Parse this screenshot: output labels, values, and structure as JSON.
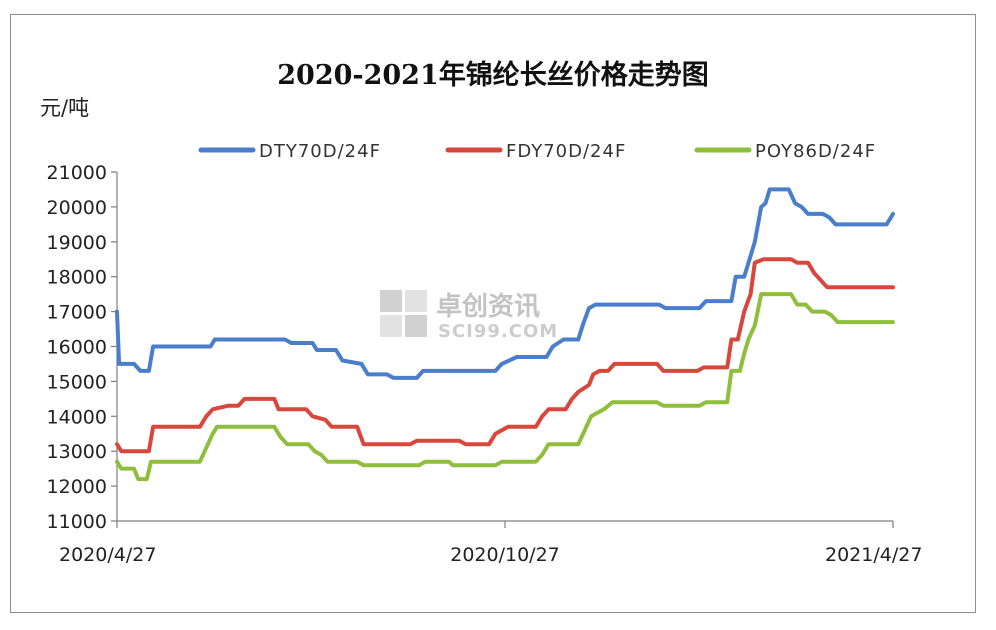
{
  "chart_data": {
    "type": "line",
    "title": "2020-2021年锦纶长丝价格走势图",
    "ylabel": "元/吨",
    "xlabel": "",
    "ylim": [
      11000,
      21000
    ],
    "yticks": [
      11000,
      12000,
      13000,
      14000,
      15000,
      16000,
      17000,
      18000,
      19000,
      20000,
      21000
    ],
    "x_tick_labels": [
      "2020/4/27",
      "2020/10/27",
      "2021/4/27"
    ],
    "grid": false,
    "legend_position": "top",
    "watermark": {
      "name": "卓创资讯",
      "site": "SCI99.COM"
    },
    "x_range": [
      "2020-04-27",
      "2021-04-27"
    ],
    "series": [
      {
        "name": "DTY70D/24F",
        "color": "#4a7ecb",
        "points": [
          [
            "2020-04-27",
            17000
          ],
          [
            "2020-04-28",
            15500
          ],
          [
            "2020-05-05",
            15500
          ],
          [
            "2020-05-08",
            15300
          ],
          [
            "2020-05-12",
            15300
          ],
          [
            "2020-05-14",
            16000
          ],
          [
            "2020-06-10",
            16000
          ],
          [
            "2020-06-12",
            16200
          ],
          [
            "2020-07-15",
            16200
          ],
          [
            "2020-07-18",
            16100
          ],
          [
            "2020-07-28",
            16100
          ],
          [
            "2020-07-30",
            15900
          ],
          [
            "2020-08-08",
            15900
          ],
          [
            "2020-08-11",
            15600
          ],
          [
            "2020-08-20",
            15500
          ],
          [
            "2020-08-23",
            15200
          ],
          [
            "2020-09-01",
            15200
          ],
          [
            "2020-09-04",
            15100
          ],
          [
            "2020-09-15",
            15100
          ],
          [
            "2020-09-18",
            15300
          ],
          [
            "2020-10-22",
            15300
          ],
          [
            "2020-10-25",
            15500
          ],
          [
            "2020-11-01",
            15700
          ],
          [
            "2020-11-15",
            15700
          ],
          [
            "2020-11-18",
            16000
          ],
          [
            "2020-11-23",
            16200
          ],
          [
            "2020-11-30",
            16200
          ],
          [
            "2020-12-02",
            16600
          ],
          [
            "2020-12-05",
            17100
          ],
          [
            "2020-12-08",
            17200
          ],
          [
            "2021-01-07",
            17200
          ],
          [
            "2021-01-10",
            17100
          ],
          [
            "2021-01-26",
            17100
          ],
          [
            "2021-01-29",
            17300
          ],
          [
            "2021-02-10",
            17300
          ],
          [
            "2021-02-12",
            18000
          ],
          [
            "2021-02-16",
            18000
          ],
          [
            "2021-02-19",
            18600
          ],
          [
            "2021-02-21",
            19000
          ],
          [
            "2021-02-24",
            20000
          ],
          [
            "2021-02-26",
            20100
          ],
          [
            "2021-02-28",
            20500
          ],
          [
            "2021-03-09",
            20500
          ],
          [
            "2021-03-12",
            20100
          ],
          [
            "2021-03-15",
            20000
          ],
          [
            "2021-03-18",
            19800
          ],
          [
            "2021-03-25",
            19800
          ],
          [
            "2021-03-28",
            19700
          ],
          [
            "2021-03-31",
            19500
          ],
          [
            "2021-04-24",
            19500
          ],
          [
            "2021-04-27",
            19800
          ]
        ]
      },
      {
        "name": "FDY70D/24F",
        "color": "#d9463c",
        "points": [
          [
            "2020-04-27",
            13200
          ],
          [
            "2020-04-29",
            13000
          ],
          [
            "2020-05-12",
            13000
          ],
          [
            "2020-05-14",
            13700
          ],
          [
            "2020-06-05",
            13700
          ],
          [
            "2020-06-08",
            14000
          ],
          [
            "2020-06-11",
            14200
          ],
          [
            "2020-06-18",
            14300
          ],
          [
            "2020-06-23",
            14300
          ],
          [
            "2020-06-26",
            14500
          ],
          [
            "2020-07-10",
            14500
          ],
          [
            "2020-07-12",
            14200
          ],
          [
            "2020-07-25",
            14200
          ],
          [
            "2020-07-28",
            14000
          ],
          [
            "2020-08-03",
            13900
          ],
          [
            "2020-08-06",
            13700
          ],
          [
            "2020-08-18",
            13700
          ],
          [
            "2020-08-21",
            13200
          ],
          [
            "2020-09-12",
            13200
          ],
          [
            "2020-09-15",
            13300
          ],
          [
            "2020-10-05",
            13300
          ],
          [
            "2020-10-08",
            13200
          ],
          [
            "2020-10-19",
            13200
          ],
          [
            "2020-10-22",
            13500
          ],
          [
            "2020-10-28",
            13700
          ],
          [
            "2020-11-10",
            13700
          ],
          [
            "2020-11-13",
            14000
          ],
          [
            "2020-11-16",
            14200
          ],
          [
            "2020-11-24",
            14200
          ],
          [
            "2020-11-27",
            14500
          ],
          [
            "2020-11-30",
            14700
          ],
          [
            "2020-12-05",
            14900
          ],
          [
            "2020-12-07",
            15200
          ],
          [
            "2020-12-10",
            15300
          ],
          [
            "2020-12-14",
            15300
          ],
          [
            "2020-12-17",
            15500
          ],
          [
            "2021-01-06",
            15500
          ],
          [
            "2021-01-09",
            15300
          ],
          [
            "2021-01-25",
            15300
          ],
          [
            "2021-01-28",
            15400
          ],
          [
            "2021-02-08",
            15400
          ],
          [
            "2021-02-10",
            16200
          ],
          [
            "2021-02-13",
            16200
          ],
          [
            "2021-02-16",
            17000
          ],
          [
            "2021-02-19",
            17500
          ],
          [
            "2021-02-21",
            18400
          ],
          [
            "2021-02-25",
            18500
          ],
          [
            "2021-03-10",
            18500
          ],
          [
            "2021-03-13",
            18400
          ],
          [
            "2021-03-18",
            18400
          ],
          [
            "2021-03-21",
            18100
          ],
          [
            "2021-03-24",
            17900
          ],
          [
            "2021-03-27",
            17700
          ],
          [
            "2021-04-27",
            17700
          ]
        ]
      },
      {
        "name": "POY86D/24F",
        "color": "#8fbe3c",
        "points": [
          [
            "2020-04-27",
            12700
          ],
          [
            "2020-04-29",
            12500
          ],
          [
            "2020-05-05",
            12500
          ],
          [
            "2020-05-07",
            12200
          ],
          [
            "2020-05-11",
            12200
          ],
          [
            "2020-05-13",
            12700
          ],
          [
            "2020-06-05",
            12700
          ],
          [
            "2020-06-08",
            13100
          ],
          [
            "2020-06-11",
            13500
          ],
          [
            "2020-06-13",
            13700
          ],
          [
            "2020-07-10",
            13700
          ],
          [
            "2020-07-13",
            13400
          ],
          [
            "2020-07-16",
            13200
          ],
          [
            "2020-07-26",
            13200
          ],
          [
            "2020-07-29",
            13000
          ],
          [
            "2020-08-01",
            12900
          ],
          [
            "2020-08-04",
            12700
          ],
          [
            "2020-08-18",
            12700
          ],
          [
            "2020-08-21",
            12600
          ],
          [
            "2020-09-16",
            12600
          ],
          [
            "2020-09-19",
            12700
          ],
          [
            "2020-09-30",
            12700
          ],
          [
            "2020-10-02",
            12600
          ],
          [
            "2020-10-22",
            12600
          ],
          [
            "2020-10-25",
            12700
          ],
          [
            "2020-11-10",
            12700
          ],
          [
            "2020-11-13",
            12900
          ],
          [
            "2020-11-16",
            13200
          ],
          [
            "2020-11-30",
            13200
          ],
          [
            "2020-12-03",
            13600
          ],
          [
            "2020-12-06",
            14000
          ],
          [
            "2020-12-12",
            14200
          ],
          [
            "2020-12-16",
            14400
          ],
          [
            "2021-01-06",
            14400
          ],
          [
            "2021-01-09",
            14300
          ],
          [
            "2021-01-26",
            14300
          ],
          [
            "2021-01-29",
            14400
          ],
          [
            "2021-02-08",
            14400
          ],
          [
            "2021-02-10",
            15300
          ],
          [
            "2021-02-14",
            15300
          ],
          [
            "2021-02-16",
            15800
          ],
          [
            "2021-02-18",
            16200
          ],
          [
            "2021-02-21",
            16600
          ],
          [
            "2021-02-24",
            17500
          ],
          [
            "2021-03-10",
            17500
          ],
          [
            "2021-03-13",
            17200
          ],
          [
            "2021-03-17",
            17200
          ],
          [
            "2021-03-20",
            17000
          ],
          [
            "2021-03-26",
            17000
          ],
          [
            "2021-03-29",
            16900
          ],
          [
            "2021-04-01",
            16700
          ],
          [
            "2021-04-27",
            16700
          ]
        ]
      }
    ]
  }
}
